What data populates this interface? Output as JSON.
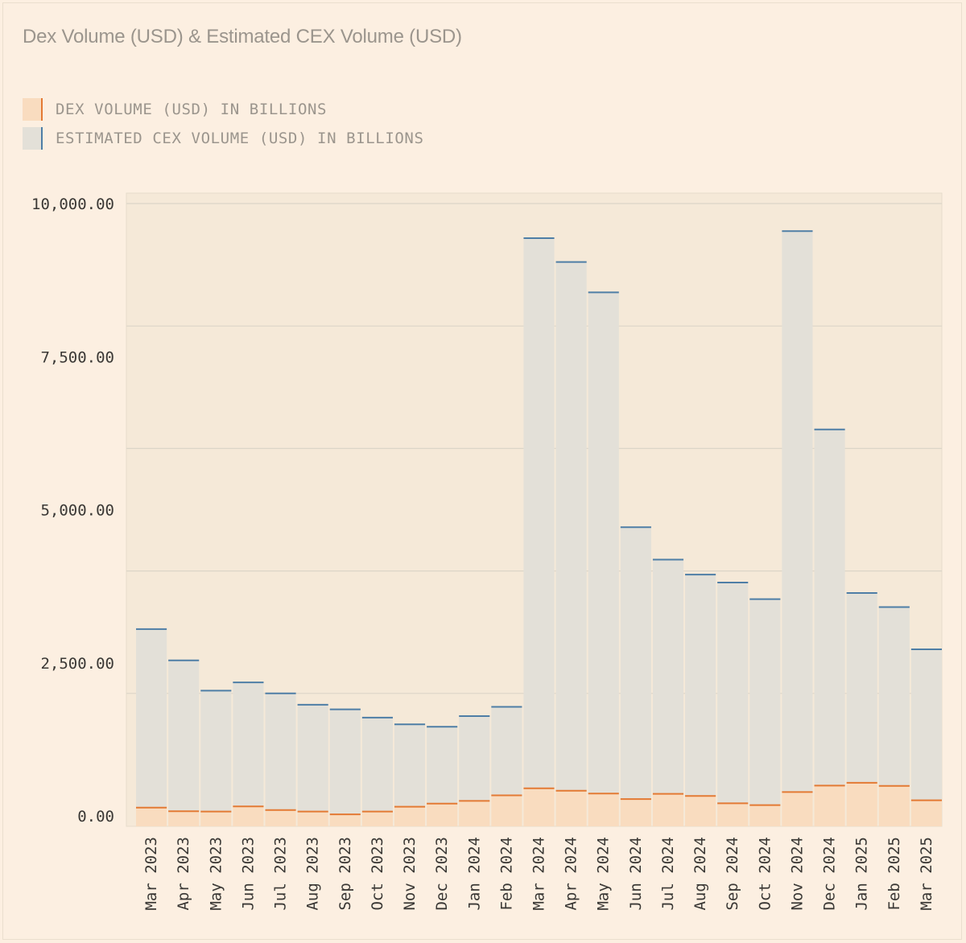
{
  "chart_data": {
    "type": "bar",
    "stacked": true,
    "title": "Dex Volume (USD) & Estimated CEX Volume (USD)",
    "categories": [
      "Mar 2023",
      "Apr 2023",
      "May 2023",
      "Jun 2023",
      "Jul 2023",
      "Aug 2023",
      "Sep 2023",
      "Oct 2023",
      "Nov 2023",
      "Dec 2023",
      "Jan 2024",
      "Feb 2024",
      "Mar 2024",
      "Apr 2024",
      "May 2024",
      "Jun 2024",
      "Jul 2024",
      "Aug 2024",
      "Sep 2024",
      "Oct 2024",
      "Nov 2024",
      "Dec 2024",
      "Jan 2025",
      "Feb 2025",
      "Mar 2025"
    ],
    "series": [
      {
        "name": "DEX VOLUME (USD) IN BILLIONS",
        "color": "#f9dcbf",
        "edge_color": "#e37a34",
        "values": [
          135,
          75,
          70,
          155,
          95,
          70,
          25,
          70,
          150,
          200,
          245,
          335,
          450,
          410,
          365,
          275,
          360,
          325,
          205,
          175,
          390,
          495,
          540,
          490,
          255
        ]
      },
      {
        "name": "ESTIMATED CEX VOLUME (USD) IN BILLIONS",
        "color": "#e3e0d8",
        "edge_color": "#4e7ea6",
        "values": [
          2915,
          2465,
          1975,
          2025,
          1905,
          1745,
          1715,
          1535,
          1345,
          1255,
          1385,
          1445,
          8985,
          8635,
          8185,
          4440,
          3825,
          3615,
          3605,
          3365,
          9160,
          5815,
          3100,
          2920,
          2465
        ]
      }
    ],
    "yticks": [
      "0.00",
      "2,500.00",
      "5,000.00",
      "7,500.00",
      "10,000.00"
    ],
    "ylim": [
      0,
      10000
    ],
    "grid": true
  },
  "legend": [
    {
      "label": "DEX VOLUME (USD) IN BILLIONS"
    },
    {
      "label": "ESTIMATED CEX VOLUME (USD) IN BILLIONS"
    }
  ],
  "colors": {
    "background": "#fcefe1",
    "plot_background": "#f5e9d8",
    "dex": "#f9dcbf",
    "dex_edge": "#e37a34",
    "cex": "#e3e0d8",
    "cex_edge": "#4e7ea6"
  }
}
